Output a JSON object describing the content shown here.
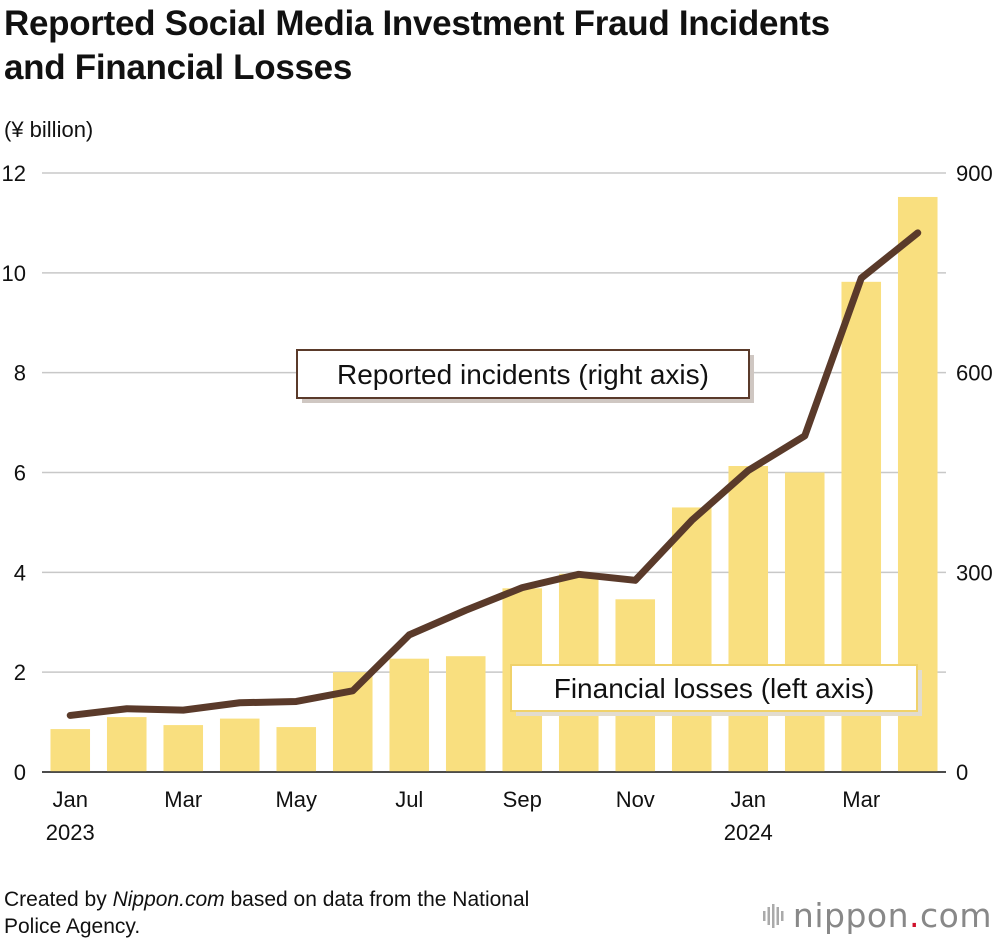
{
  "title_line1": "Reported Social Media Investment Fraud Incidents",
  "title_line2": "and Financial Losses",
  "unit_label": "(¥ billion)",
  "source": {
    "prefix": "Created by ",
    "site": "Nippon.com",
    "suffix_line1": " based on data from the National",
    "suffix_line2": "Police Agency."
  },
  "logo": {
    "name": "nippon",
    "dot": ".",
    "tld": "com",
    "icon": "nippon-logo-icon"
  },
  "colors": {
    "bar": "#f9df7f",
    "line": "#5a3a2a",
    "grid": "#c8c8c8",
    "accent": "#d0112b"
  },
  "chart_data": {
    "type": "bar",
    "categories": [
      "Jan 2023",
      "Feb 2023",
      "Mar 2023",
      "Apr 2023",
      "May 2023",
      "Jun 2023",
      "Jul 2023",
      "Aug 2023",
      "Sep 2023",
      "Oct 2023",
      "Nov 2023",
      "Dec 2023",
      "Jan 2024",
      "Feb 2024",
      "Mar 2024",
      "Apr 2024"
    ],
    "x_tick_labels": [
      "Jan",
      "",
      "Mar",
      "",
      "May",
      "",
      "Jul",
      "",
      "Sep",
      "",
      "Nov",
      "",
      "Jan",
      "",
      "Mar",
      ""
    ],
    "x_year_labels": [
      "2023",
      "",
      "",
      "",
      "",
      "",
      "",
      "",
      "",
      "",
      "",
      "",
      "2024",
      "",
      "",
      ""
    ],
    "series": [
      {
        "name": "Financial losses (left axis)",
        "type": "bar",
        "axis": "left",
        "values": [
          0.86,
          1.1,
          0.94,
          1.07,
          0.9,
          2.0,
          2.27,
          2.32,
          3.68,
          3.97,
          3.46,
          5.3,
          6.13,
          6.0,
          9.82,
          11.52
        ]
      },
      {
        "name": "Reported incidents (right axis)",
        "type": "line",
        "axis": "right",
        "values": [
          85,
          95,
          93,
          104,
          106,
          122,
          206,
          243,
          277,
          297,
          288,
          378,
          453,
          505,
          742,
          810
        ]
      }
    ],
    "y_left": {
      "min": 0,
      "max": 12,
      "ticks": [
        0,
        2,
        4,
        6,
        8,
        10,
        12
      ]
    },
    "y_right": {
      "min": 0,
      "max": 900,
      "ticks": [
        0,
        300,
        600,
        900
      ]
    },
    "grid": true
  }
}
